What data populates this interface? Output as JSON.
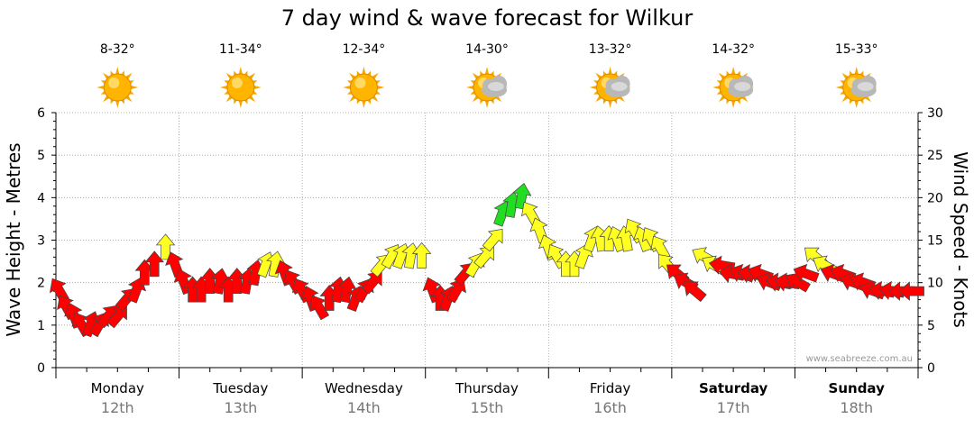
{
  "chart_data": {
    "type": "arrow-timeseries",
    "title": "7 day wind & wave forecast for Wilkur",
    "y_left_label": "Wave Height - Metres",
    "y_right_label": "Wind Speed - Knots",
    "y_left_range": [
      0,
      6
    ],
    "y_left_ticks": [
      "0",
      "1",
      "2",
      "3",
      "4",
      "5",
      "6"
    ],
    "y_right_range": [
      0,
      30
    ],
    "y_right_ticks": [
      "0",
      "5",
      "10",
      "15",
      "20",
      "25",
      "30"
    ],
    "credit": "www.seabreeze.com.au",
    "grid": true,
    "colors": {
      "strong": "#ff0000",
      "moderate": "#ffff00",
      "light": "#22dd22",
      "grid": "#999999"
    },
    "days": [
      {
        "name": "Monday",
        "date": "12th",
        "temp": "8-32°",
        "weather": "sunny",
        "bold": false
      },
      {
        "name": "Tuesday",
        "date": "13th",
        "temp": "11-34°",
        "weather": "sunny",
        "bold": false
      },
      {
        "name": "Wednesday",
        "date": "14th",
        "temp": "12-34°",
        "weather": "sunny",
        "bold": false
      },
      {
        "name": "Thursday",
        "date": "15th",
        "temp": "14-30°",
        "weather": "partly-cloudy",
        "bold": false
      },
      {
        "name": "Friday",
        "date": "16th",
        "temp": "13-32°",
        "weather": "partly-cloudy",
        "bold": false
      },
      {
        "name": "Saturday",
        "date": "17th",
        "temp": "14-32°",
        "weather": "partly-cloudy",
        "bold": true
      },
      {
        "name": "Sunday",
        "date": "18th",
        "temp": "15-33°",
        "weather": "partly-cloudy",
        "bold": true
      }
    ],
    "wind": [
      {
        "t": 0.03,
        "kn": 9,
        "dir": 330,
        "c": "red"
      },
      {
        "t": 0.09,
        "kn": 7,
        "dir": 330,
        "c": "red"
      },
      {
        "t": 0.15,
        "kn": 6,
        "dir": 340,
        "c": "red"
      },
      {
        "t": 0.21,
        "kn": 5,
        "dir": 330,
        "c": "red"
      },
      {
        "t": 0.28,
        "kn": 5,
        "dir": 20,
        "c": "red"
      },
      {
        "t": 0.35,
        "kn": 5,
        "dir": 30,
        "c": "red"
      },
      {
        "t": 0.42,
        "kn": 6,
        "dir": 40,
        "c": "red"
      },
      {
        "t": 0.5,
        "kn": 6,
        "dir": 40,
        "c": "red"
      },
      {
        "t": 0.57,
        "kn": 8,
        "dir": 40,
        "c": "red"
      },
      {
        "t": 0.65,
        "kn": 9,
        "dir": 20,
        "c": "red"
      },
      {
        "t": 0.72,
        "kn": 11,
        "dir": 0,
        "c": "red"
      },
      {
        "t": 0.8,
        "kn": 12,
        "dir": 0,
        "c": "red"
      },
      {
        "t": 0.89,
        "kn": 14,
        "dir": 0,
        "c": "yellow"
      },
      {
        "t": 0.97,
        "kn": 12,
        "dir": 340,
        "c": "red"
      },
      {
        "t": 1.04,
        "kn": 10,
        "dir": 340,
        "c": "red"
      },
      {
        "t": 1.11,
        "kn": 9,
        "dir": 0,
        "c": "red"
      },
      {
        "t": 1.18,
        "kn": 9,
        "dir": 0,
        "c": "red"
      },
      {
        "t": 1.25,
        "kn": 10,
        "dir": 0,
        "c": "red"
      },
      {
        "t": 1.33,
        "kn": 10,
        "dir": 10,
        "c": "red"
      },
      {
        "t": 1.4,
        "kn": 9,
        "dir": 0,
        "c": "red"
      },
      {
        "t": 1.47,
        "kn": 10,
        "dir": 0,
        "c": "red"
      },
      {
        "t": 1.55,
        "kn": 10,
        "dir": 10,
        "c": "red"
      },
      {
        "t": 1.62,
        "kn": 11,
        "dir": 10,
        "c": "red"
      },
      {
        "t": 1.7,
        "kn": 12,
        "dir": 20,
        "c": "yellow"
      },
      {
        "t": 1.78,
        "kn": 12,
        "dir": 10,
        "c": "yellow"
      },
      {
        "t": 1.86,
        "kn": 11,
        "dir": 340,
        "c": "red"
      },
      {
        "t": 1.93,
        "kn": 10,
        "dir": 330,
        "c": "red"
      },
      {
        "t": 2.0,
        "kn": 9,
        "dir": 330,
        "c": "red"
      },
      {
        "t": 2.07,
        "kn": 8,
        "dir": 340,
        "c": "red"
      },
      {
        "t": 2.14,
        "kn": 7,
        "dir": 330,
        "c": "red"
      },
      {
        "t": 2.22,
        "kn": 8,
        "dir": 0,
        "c": "red"
      },
      {
        "t": 2.29,
        "kn": 9,
        "dir": 10,
        "c": "red"
      },
      {
        "t": 2.36,
        "kn": 9,
        "dir": 10,
        "c": "red"
      },
      {
        "t": 2.43,
        "kn": 8,
        "dir": 20,
        "c": "red"
      },
      {
        "t": 2.5,
        "kn": 9,
        "dir": 30,
        "c": "red"
      },
      {
        "t": 2.57,
        "kn": 10,
        "dir": 40,
        "c": "red"
      },
      {
        "t": 2.64,
        "kn": 12,
        "dir": 40,
        "c": "yellow"
      },
      {
        "t": 2.72,
        "kn": 13,
        "dir": 30,
        "c": "yellow"
      },
      {
        "t": 2.8,
        "kn": 13,
        "dir": 20,
        "c": "yellow"
      },
      {
        "t": 2.88,
        "kn": 13,
        "dir": 10,
        "c": "yellow"
      },
      {
        "t": 2.97,
        "kn": 13,
        "dir": 0,
        "c": "yellow"
      },
      {
        "t": 3.06,
        "kn": 9,
        "dir": 340,
        "c": "red"
      },
      {
        "t": 3.12,
        "kn": 8,
        "dir": 0,
        "c": "red"
      },
      {
        "t": 3.18,
        "kn": 8,
        "dir": 20,
        "c": "red"
      },
      {
        "t": 3.25,
        "kn": 9,
        "dir": 30,
        "c": "red"
      },
      {
        "t": 3.32,
        "kn": 11,
        "dir": 40,
        "c": "red"
      },
      {
        "t": 3.4,
        "kn": 12,
        "dir": 30,
        "c": "yellow"
      },
      {
        "t": 3.48,
        "kn": 13,
        "dir": 40,
        "c": "yellow"
      },
      {
        "t": 3.55,
        "kn": 15,
        "dir": 40,
        "c": "yellow"
      },
      {
        "t": 3.62,
        "kn": 18,
        "dir": 20,
        "c": "green"
      },
      {
        "t": 3.7,
        "kn": 19,
        "dir": 10,
        "c": "green"
      },
      {
        "t": 3.78,
        "kn": 20,
        "dir": 10,
        "c": "green"
      },
      {
        "t": 3.86,
        "kn": 18,
        "dir": 330,
        "c": "yellow"
      },
      {
        "t": 3.93,
        "kn": 16,
        "dir": 340,
        "c": "yellow"
      },
      {
        "t": 4.0,
        "kn": 14,
        "dir": 340,
        "c": "yellow"
      },
      {
        "t": 4.07,
        "kn": 13,
        "dir": 330,
        "c": "yellow"
      },
      {
        "t": 4.14,
        "kn": 12,
        "dir": 0,
        "c": "yellow"
      },
      {
        "t": 4.21,
        "kn": 12,
        "dir": 0,
        "c": "yellow"
      },
      {
        "t": 4.28,
        "kn": 13,
        "dir": 20,
        "c": "yellow"
      },
      {
        "t": 4.35,
        "kn": 15,
        "dir": 20,
        "c": "yellow"
      },
      {
        "t": 4.42,
        "kn": 15,
        "dir": 350,
        "c": "yellow"
      },
      {
        "t": 4.49,
        "kn": 15,
        "dir": 0,
        "c": "yellow"
      },
      {
        "t": 4.56,
        "kn": 15,
        "dir": 340,
        "c": "yellow"
      },
      {
        "t": 4.63,
        "kn": 15,
        "dir": 350,
        "c": "yellow"
      },
      {
        "t": 4.7,
        "kn": 16,
        "dir": 330,
        "c": "yellow"
      },
      {
        "t": 4.77,
        "kn": 15,
        "dir": 340,
        "c": "yellow"
      },
      {
        "t": 4.84,
        "kn": 15,
        "dir": 330,
        "c": "yellow"
      },
      {
        "t": 4.91,
        "kn": 14,
        "dir": 330,
        "c": "yellow"
      },
      {
        "t": 4.97,
        "kn": 12,
        "dir": 320,
        "c": "yellow"
      },
      {
        "t": 5.05,
        "kn": 11,
        "dir": 310,
        "c": "red"
      },
      {
        "t": 5.12,
        "kn": 10,
        "dir": 300,
        "c": "red"
      },
      {
        "t": 5.19,
        "kn": 9,
        "dir": 310,
        "c": "red"
      },
      {
        "t": 5.27,
        "kn": 13,
        "dir": 300,
        "c": "yellow"
      },
      {
        "t": 5.35,
        "kn": 12,
        "dir": 300,
        "c": "yellow"
      },
      {
        "t": 5.42,
        "kn": 12,
        "dir": 280,
        "c": "red"
      },
      {
        "t": 5.5,
        "kn": 11,
        "dir": 280,
        "c": "red"
      },
      {
        "t": 5.58,
        "kn": 11,
        "dir": 290,
        "c": "red"
      },
      {
        "t": 5.65,
        "kn": 11,
        "dir": 280,
        "c": "red"
      },
      {
        "t": 5.73,
        "kn": 11,
        "dir": 290,
        "c": "red"
      },
      {
        "t": 5.8,
        "kn": 10,
        "dir": 290,
        "c": "red"
      },
      {
        "t": 5.88,
        "kn": 10,
        "dir": 280,
        "c": "red"
      },
      {
        "t": 5.95,
        "kn": 10,
        "dir": 280,
        "c": "red"
      },
      {
        "t": 6.03,
        "kn": 10,
        "dir": 300,
        "c": "red"
      },
      {
        "t": 6.1,
        "kn": 11,
        "dir": 290,
        "c": "red"
      },
      {
        "t": 6.17,
        "kn": 13,
        "dir": 310,
        "c": "yellow"
      },
      {
        "t": 6.25,
        "kn": 12,
        "dir": 300,
        "c": "yellow"
      },
      {
        "t": 6.32,
        "kn": 11,
        "dir": 290,
        "c": "red"
      },
      {
        "t": 6.4,
        "kn": 11,
        "dir": 290,
        "c": "red"
      },
      {
        "t": 6.48,
        "kn": 10,
        "dir": 290,
        "c": "red"
      },
      {
        "t": 6.56,
        "kn": 10,
        "dir": 290,
        "c": "red"
      },
      {
        "t": 6.64,
        "kn": 9,
        "dir": 290,
        "c": "red"
      },
      {
        "t": 6.72,
        "kn": 9,
        "dir": 280,
        "c": "red"
      },
      {
        "t": 6.8,
        "kn": 9,
        "dir": 280,
        "c": "red"
      },
      {
        "t": 6.88,
        "kn": 9,
        "dir": 270,
        "c": "red"
      },
      {
        "t": 6.96,
        "kn": 9,
        "dir": 270,
        "c": "red"
      }
    ]
  }
}
